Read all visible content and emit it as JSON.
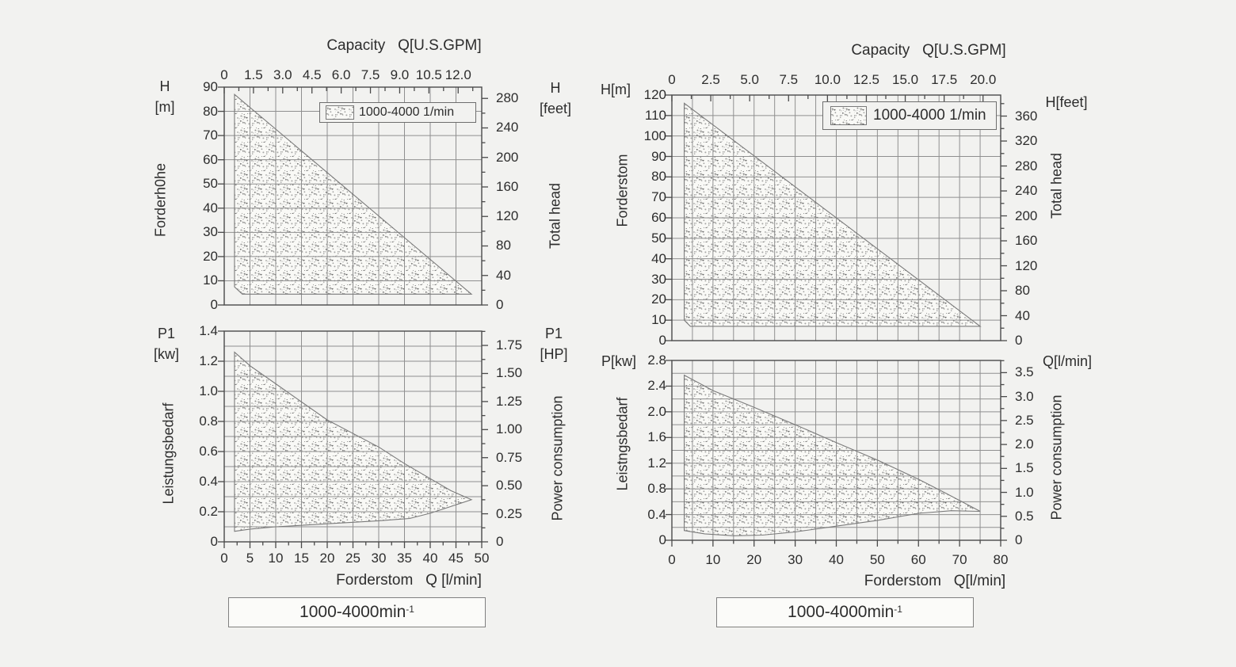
{
  "colors": {
    "background": "#f2f2f0",
    "text": "#2d2d2d",
    "grid": "#8f8f8f",
    "axis": "#4a4a4a",
    "envelope_fill": "#f9f9f6",
    "envelope_stroke": "#7a7a7a",
    "stipple_dot": "#5a5a5a",
    "box_background": "#fbfbf9",
    "box_border": "#808080"
  },
  "chart_data": [
    {
      "name": "head-vs-flow-left",
      "type": "area",
      "top_axis_title": "Capacity   Q[U.S.GPM]",
      "top_ticks": [
        0,
        1.5,
        3,
        4.5,
        6,
        7.5,
        9,
        10.5,
        12
      ],
      "top_tick_labels": [
        "0",
        "1.5",
        "3.0",
        "4.5",
        "6.0",
        "7.5",
        "9.0",
        "10.5",
        "12.0"
      ],
      "gpm_to_lmin": 3.7854,
      "x_range": [
        0,
        50
      ],
      "x_grid_step": 5,
      "y_left": {
        "unit_lines": [
          "H",
          "[m]"
        ],
        "rotated_label": "Forderh0he",
        "range": [
          0,
          90
        ],
        "grid_step": 10,
        "tick_step": 10,
        "tick_labels": [
          "0",
          "10",
          "20",
          "30",
          "40",
          "50",
          "60",
          "70",
          "80",
          "90"
        ]
      },
      "y_right": {
        "unit_lines": [
          "H",
          "[feet]"
        ],
        "rotated_label": "Total head",
        "ticks": [
          0,
          40,
          80,
          120,
          160,
          200,
          240,
          280
        ],
        "tick_labels": [
          "0",
          "40",
          "80",
          "120",
          "160",
          "200",
          "240",
          "280"
        ],
        "minor_step": 20,
        "feet_to_m": 0.3048
      },
      "legend_label": "1000-4000 1/min",
      "envelope": [
        [
          2,
          87
        ],
        [
          48,
          4.5
        ],
        [
          3.5,
          4.5
        ],
        [
          2,
          7.5
        ]
      ]
    },
    {
      "name": "power-vs-flow-left",
      "type": "area",
      "x_range": [
        0,
        50
      ],
      "x_grid_step": 5,
      "x_ticks": [
        0,
        5,
        10,
        15,
        20,
        25,
        30,
        35,
        40,
        45,
        50
      ],
      "x_tick_labels": [
        "0",
        "5",
        "10",
        "15",
        "20",
        "25",
        "30",
        "35",
        "40",
        "45",
        "50"
      ],
      "x_minor_step": 2.5,
      "x_axis_label": "Forderstom   Q [l/min]",
      "y_left": {
        "unit_lines": [
          "P1",
          "[kw]"
        ],
        "rotated_label": "Leistungsbedarf",
        "range": [
          0,
          1.4
        ],
        "grid_step": 0.1,
        "tick_step": 0.2,
        "tick_labels": [
          "0",
          "0.2",
          "0.4",
          "0.6",
          "0.8",
          "1.0",
          "1.2",
          "1.4"
        ]
      },
      "y_right": {
        "unit_lines": [
          "P1",
          "[HP]"
        ],
        "rotated_label": "Power consumption",
        "ticks": [
          0,
          0.25,
          0.5,
          0.75,
          1,
          1.25,
          1.5,
          1.75
        ],
        "tick_labels": [
          "0",
          "0.25",
          "0.50",
          "0.75",
          "1.00",
          "1.25",
          "1.50",
          "1.75"
        ],
        "minor_step": 0.125,
        "hp_to_kw": 0.7457
      },
      "envelope": [
        [
          2,
          1.26
        ],
        [
          5,
          1.17
        ],
        [
          10,
          1.05
        ],
        [
          15,
          0.93
        ],
        [
          20,
          0.81
        ],
        [
          25,
          0.72
        ],
        [
          30,
          0.63
        ],
        [
          35,
          0.52
        ],
        [
          40,
          0.42
        ],
        [
          44,
          0.34
        ],
        [
          48,
          0.28
        ],
        [
          44,
          0.235
        ],
        [
          40,
          0.19
        ],
        [
          36,
          0.155
        ],
        [
          30,
          0.14
        ],
        [
          20,
          0.12
        ],
        [
          10,
          0.1
        ],
        [
          5,
          0.085
        ],
        [
          2,
          0.07
        ]
      ]
    },
    {
      "name": "head-vs-flow-right",
      "type": "area",
      "top_axis_title": "Capacity   Q[U.S.GPM]",
      "top_ticks": [
        0,
        2.5,
        5,
        7.5,
        10,
        12.5,
        15,
        17.5,
        20
      ],
      "top_tick_labels": [
        "0",
        "2.5",
        "5.0",
        "7.5",
        "10.0",
        "12.5",
        "15.0",
        "17.5",
        "20.0"
      ],
      "gpm_to_lmin": 3.7854,
      "x_range": [
        0,
        80
      ],
      "x_grid_step": 5,
      "y_left": {
        "unit_lines": [
          "H[m]"
        ],
        "rotated_label": "Forderstom",
        "range": [
          0,
          120
        ],
        "grid_step": 10,
        "tick_step": 10,
        "tick_labels": [
          "0",
          "10",
          "20",
          "30",
          "40",
          "50",
          "60",
          "70",
          "80",
          "90",
          "100",
          "110",
          "120"
        ]
      },
      "y_right": {
        "unit_lines": [
          "H[feet]"
        ],
        "rotated_label": "Total head",
        "ticks": [
          0,
          40,
          80,
          120,
          160,
          200,
          240,
          280,
          320,
          360
        ],
        "tick_labels": [
          "0",
          "40",
          "80",
          "120",
          "160",
          "200",
          "240",
          "280",
          "320",
          "360"
        ],
        "minor_step": 20,
        "feet_to_m": 0.3048
      },
      "legend_label": "1000-4000 1/min",
      "envelope": [
        [
          3,
          116
        ],
        [
          75,
          7
        ],
        [
          4.5,
          7
        ],
        [
          3,
          10
        ]
      ]
    },
    {
      "name": "power-vs-flow-right",
      "type": "area",
      "x_range": [
        0,
        80
      ],
      "x_grid_step": 5,
      "x_ticks": [
        0,
        10,
        20,
        30,
        40,
        50,
        60,
        70,
        80
      ],
      "x_tick_labels": [
        "0",
        "10",
        "20",
        "30",
        "40",
        "50",
        "60",
        "70",
        "80"
      ],
      "x_minor_step": 5,
      "x_axis_label": "Forderstom   Q[l/min]",
      "y_left": {
        "unit_lines": [
          "P[kw]"
        ],
        "rotated_label": "Leistngsbedarf",
        "range": [
          0,
          2.8
        ],
        "grid_step": 0.2,
        "tick_step": 0.4,
        "tick_labels": [
          "0",
          "0.4",
          "0.8",
          "1.2",
          "1.6",
          "2.0",
          "2.4",
          "2.8"
        ]
      },
      "y_right": {
        "unit_lines": [
          "Q[l/min]"
        ],
        "rotated_label": "Power consumption",
        "ticks": [
          0,
          0.5,
          1,
          1.5,
          2,
          2.5,
          3,
          3.5
        ],
        "tick_labels": [
          "0",
          "0.5",
          "1.0",
          "1.5",
          "2.0",
          "2.5",
          "3.0",
          "3.5"
        ],
        "minor_step": 0.25,
        "hp_to_kw": 0.7457
      },
      "envelope": [
        [
          3,
          2.57
        ],
        [
          10,
          2.33
        ],
        [
          20,
          2.07
        ],
        [
          30,
          1.8
        ],
        [
          40,
          1.52
        ],
        [
          50,
          1.25
        ],
        [
          60,
          0.95
        ],
        [
          67,
          0.72
        ],
        [
          75,
          0.45
        ],
        [
          68,
          0.46
        ],
        [
          60,
          0.42
        ],
        [
          50,
          0.31
        ],
        [
          40,
          0.22
        ],
        [
          30,
          0.13
        ],
        [
          22,
          0.08
        ],
        [
          15,
          0.07
        ],
        [
          8,
          0.1
        ],
        [
          3,
          0.15
        ]
      ]
    }
  ],
  "footer": {
    "left_text": "1000-4000min",
    "left_sup": "-1",
    "right_text": "1000-4000min",
    "right_sup": "-1"
  }
}
